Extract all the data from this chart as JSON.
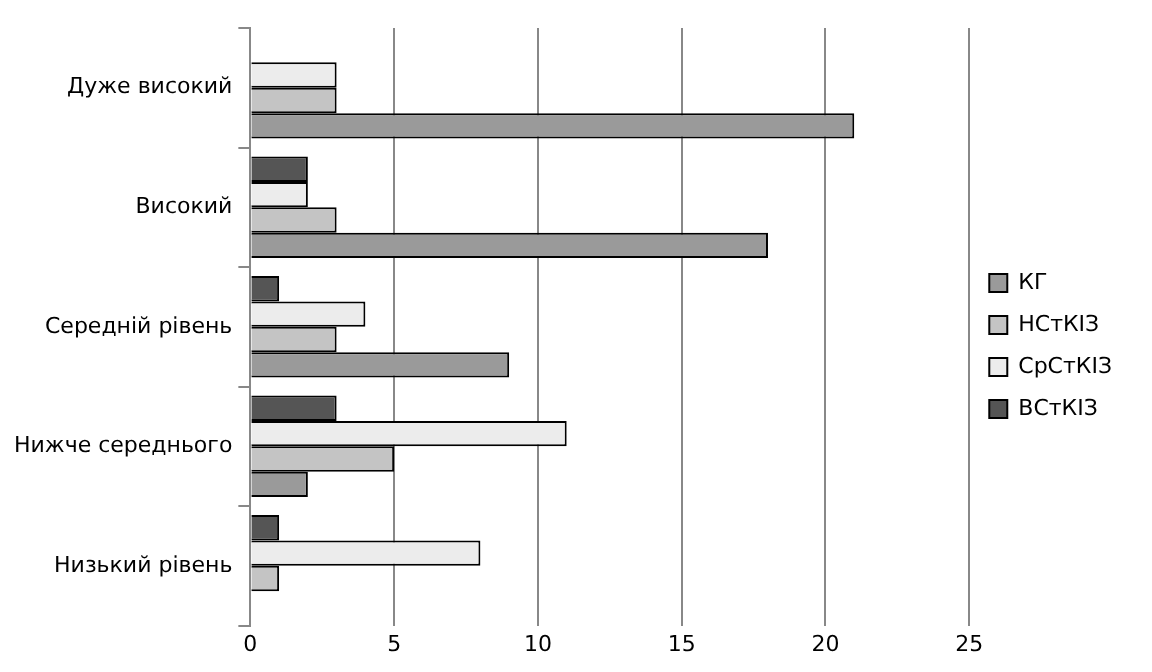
{
  "chart_data": {
    "type": "bar",
    "orientation": "horizontal",
    "categories": [
      "Дуже високий",
      "Високий",
      "Середній рівень",
      "Нижче середнього",
      "Низький рівень"
    ],
    "series": [
      {
        "name": "КГ",
        "color": "#9a9a9a",
        "values": [
          21,
          18,
          9,
          2,
          0
        ]
      },
      {
        "name": "НСтКІЗ",
        "color": "#c4c4c4",
        "values": [
          3,
          3,
          3,
          5,
          1
        ]
      },
      {
        "name": "СрСтКІЗ",
        "color": "#ececec",
        "values": [
          3,
          2,
          4,
          11,
          8
        ]
      },
      {
        "name": "ВСтКІЗ",
        "color": "#555555",
        "values": [
          0,
          2,
          1,
          3,
          1
        ]
      }
    ],
    "xlim": [
      0,
      25
    ],
    "xticks": [
      0,
      5,
      10,
      15,
      20,
      25
    ],
    "grid": "x",
    "legend": "right"
  }
}
